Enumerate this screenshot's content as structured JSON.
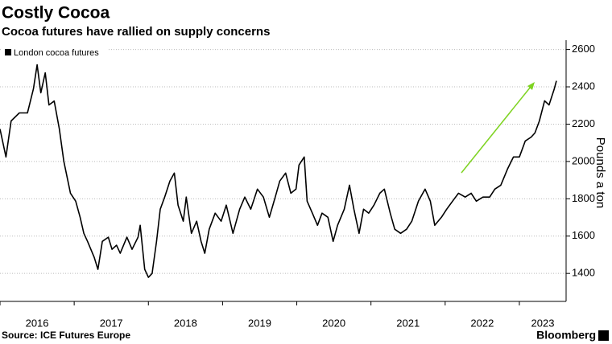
{
  "chart_data": {
    "type": "line",
    "title": "Costly Cocoa",
    "subtitle": "Cocoa futures have rallied on supply concerns",
    "y_label": "Pounds a ton",
    "source": "Source: ICE Futures Europe",
    "brand": "Bloomberg",
    "x": [
      2016.0,
      2016.08,
      2016.15,
      2016.26,
      2016.37,
      2016.45,
      2016.5,
      2016.55,
      2016.61,
      2016.66,
      2016.73,
      2016.8,
      2016.86,
      2016.95,
      2017.02,
      2017.08,
      2017.13,
      2017.18,
      2017.27,
      2017.32,
      2017.38,
      2017.46,
      2017.51,
      2017.57,
      2017.62,
      2017.71,
      2017.78,
      2017.86,
      2017.89,
      2017.95,
      2018.0,
      2018.05,
      2018.11,
      2018.16,
      2018.22,
      2018.29,
      2018.35,
      2018.4,
      2018.47,
      2018.51,
      2018.58,
      2018.65,
      2018.71,
      2018.76,
      2018.82,
      2018.9,
      2018.98,
      2019.05,
      2019.14,
      2019.23,
      2019.3,
      2019.38,
      2019.47,
      2019.55,
      2019.63,
      2019.71,
      2019.77,
      2019.85,
      2019.92,
      2019.99,
      2020.03,
      2020.1,
      2020.14,
      2020.21,
      2020.28,
      2020.34,
      2020.42,
      2020.49,
      2020.55,
      2020.64,
      2020.71,
      2020.77,
      2020.84,
      2020.9,
      2020.97,
      2021.04,
      2021.12,
      2021.18,
      2021.26,
      2021.32,
      2021.4,
      2021.48,
      2021.55,
      2021.64,
      2021.73,
      2021.8,
      2021.86,
      2021.95,
      2022.02,
      2022.1,
      2022.18,
      2022.27,
      2022.35,
      2022.42,
      2022.51,
      2022.6,
      2022.67,
      2022.75,
      2022.84,
      2022.92,
      2023.0,
      2023.08,
      2023.16,
      2023.21,
      2023.27,
      2023.34,
      2023.4,
      2023.47,
      2023.5
    ],
    "series": [
      {
        "name": "London cocoa futures",
        "color": "#000000",
        "values": [
          2174,
          2024,
          2217,
          2260,
          2260,
          2389,
          2518,
          2368,
          2475,
          2303,
          2324,
          2174,
          2002,
          1830,
          1787,
          1701,
          1615,
          1572,
          1486,
          1422,
          1572,
          1594,
          1529,
          1551,
          1508,
          1594,
          1529,
          1594,
          1658,
          1422,
          1379,
          1400,
          1572,
          1744,
          1809,
          1895,
          1938,
          1766,
          1680,
          1809,
          1615,
          1680,
          1572,
          1508,
          1637,
          1723,
          1680,
          1766,
          1615,
          1744,
          1809,
          1744,
          1852,
          1809,
          1701,
          1809,
          1895,
          1938,
          1830,
          1852,
          1981,
          2024,
          1787,
          1723,
          1658,
          1723,
          1701,
          1572,
          1658,
          1744,
          1873,
          1744,
          1615,
          1744,
          1723,
          1766,
          1830,
          1852,
          1723,
          1637,
          1615,
          1637,
          1680,
          1787,
          1852,
          1787,
          1658,
          1701,
          1744,
          1787,
          1830,
          1809,
          1830,
          1787,
          1809,
          1809,
          1852,
          1873,
          1959,
          2024,
          2024,
          2110,
          2131,
          2153,
          2217,
          2325,
          2303,
          2389,
          2432
        ]
      }
    ],
    "xlim": [
      2016,
      2023.63
    ],
    "xticks": [
      2016,
      2017,
      2018,
      2019,
      2020,
      2021,
      2022,
      2023
    ],
    "ylim": [
      1250,
      2650
    ],
    "yticks": [
      1400,
      1600,
      1800,
      2000,
      2200,
      2400,
      2600
    ],
    "grid": true
  }
}
